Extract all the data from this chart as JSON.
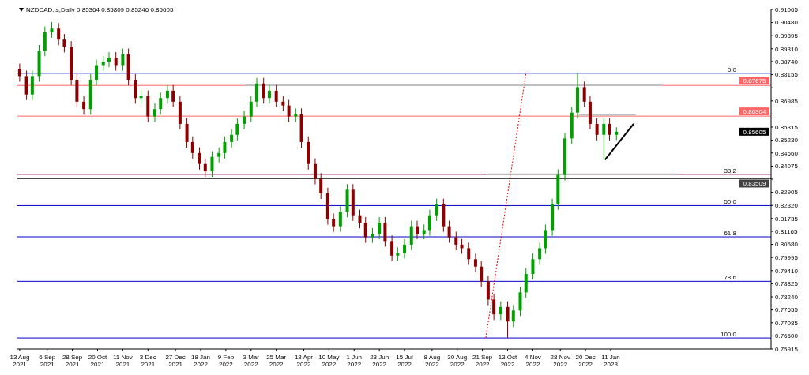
{
  "chart_data": {
    "type": "candlestick",
    "title": "NZDCAD.ts,Daily 0.85364 0.85809 0.85246 0.85605",
    "x": [
      "2021-08-13",
      "2021-08-19",
      "2021-08-24",
      "2021-08-30",
      "2021-09-04",
      "2021-09-10",
      "2021-09-16",
      "2021-09-21",
      "2021-09-27",
      "2021-10-02",
      "2021-10-08",
      "2021-10-14",
      "2021-10-19",
      "2021-10-25",
      "2021-10-30",
      "2021-11-05",
      "2021-11-11",
      "2021-11-16",
      "2021-11-22",
      "2021-11-27",
      "2021-12-03",
      "2021-12-09",
      "2021-12-14",
      "2021-12-20",
      "2021-12-25",
      "2021-12-31",
      "2022-01-06",
      "2022-01-11",
      "2022-01-17",
      "2022-01-22",
      "2022-01-28",
      "2022-02-03",
      "2022-02-08",
      "2022-02-14",
      "2022-02-19",
      "2022-02-25",
      "2022-03-03",
      "2022-03-08",
      "2022-03-14",
      "2022-03-19",
      "2022-03-25",
      "2022-03-31",
      "2022-04-05",
      "2022-04-11",
      "2022-04-16",
      "2022-04-22",
      "2022-04-28",
      "2022-05-03",
      "2022-05-09",
      "2022-05-14",
      "2022-05-20",
      "2022-05-26",
      "2022-05-31",
      "2022-06-06",
      "2022-06-11",
      "2022-06-17",
      "2022-06-23",
      "2022-06-28",
      "2022-07-04",
      "2022-07-09",
      "2022-07-15",
      "2022-07-21",
      "2022-07-26",
      "2022-08-01",
      "2022-08-06",
      "2022-08-12",
      "2022-08-18",
      "2022-08-23",
      "2022-08-29",
      "2022-09-03",
      "2022-09-09",
      "2022-09-15",
      "2022-09-20",
      "2022-09-26",
      "2022-10-01",
      "2022-10-07",
      "2022-10-13",
      "2022-10-18",
      "2022-10-24",
      "2022-10-29",
      "2022-11-04",
      "2022-11-10",
      "2022-11-15",
      "2022-11-21",
      "2022-11-26",
      "2022-12-02",
      "2022-12-08",
      "2022-12-13",
      "2022-12-19",
      "2022-12-24",
      "2022-12-30",
      "2023-01-05",
      "2023-01-10",
      "2023-01-16"
    ],
    "ohlc": [
      [
        0.884,
        0.8865,
        0.8784,
        0.8809
      ],
      [
        0.8809,
        0.8834,
        0.8702,
        0.8727
      ],
      [
        0.8727,
        0.8834,
        0.8702,
        0.8809
      ],
      [
        0.8809,
        0.8948,
        0.8784,
        0.8923
      ],
      [
        0.8923,
        0.903,
        0.8898,
        0.9005
      ],
      [
        0.9005,
        0.905,
        0.898,
        0.9021
      ],
      [
        0.9021,
        0.9046,
        0.8947,
        0.8972
      ],
      [
        0.8972,
        0.8997,
        0.8915,
        0.894
      ],
      [
        0.894,
        0.8965,
        0.8768,
        0.8793
      ],
      [
        0.8793,
        0.8818,
        0.867,
        0.8695
      ],
      [
        0.8695,
        0.872,
        0.8637,
        0.8662
      ],
      [
        0.8662,
        0.8818,
        0.8637,
        0.8793
      ],
      [
        0.8793,
        0.8883,
        0.8768,
        0.8858
      ],
      [
        0.8858,
        0.8899,
        0.8833,
        0.8874
      ],
      [
        0.8874,
        0.8916,
        0.8849,
        0.8891
      ],
      [
        0.8891,
        0.8916,
        0.8833,
        0.8858
      ],
      [
        0.8858,
        0.8932,
        0.8833,
        0.8907
      ],
      [
        0.8907,
        0.8932,
        0.8768,
        0.8793
      ],
      [
        0.8793,
        0.8818,
        0.8686,
        0.8711
      ],
      [
        0.8711,
        0.8745,
        0.8686,
        0.872
      ],
      [
        0.872,
        0.8745,
        0.8604,
        0.8629
      ],
      [
        0.8629,
        0.8687,
        0.8604,
        0.8662
      ],
      [
        0.8662,
        0.8736,
        0.8637,
        0.8711
      ],
      [
        0.8711,
        0.8769,
        0.8686,
        0.8744
      ],
      [
        0.8744,
        0.8769,
        0.867,
        0.8695
      ],
      [
        0.8695,
        0.872,
        0.8571,
        0.8596
      ],
      [
        0.8596,
        0.8621,
        0.849,
        0.8515
      ],
      [
        0.8515,
        0.854,
        0.8441,
        0.8466
      ],
      [
        0.8466,
        0.8491,
        0.8392,
        0.8417
      ],
      [
        0.8417,
        0.8442,
        0.8359,
        0.8384
      ],
      [
        0.8384,
        0.8474,
        0.8359,
        0.8449
      ],
      [
        0.8449,
        0.8491,
        0.8424,
        0.8466
      ],
      [
        0.8466,
        0.854,
        0.8441,
        0.8515
      ],
      [
        0.8515,
        0.8572,
        0.849,
        0.8547
      ],
      [
        0.8547,
        0.8621,
        0.8522,
        0.8596
      ],
      [
        0.8596,
        0.8654,
        0.8571,
        0.8629
      ],
      [
        0.8629,
        0.872,
        0.8604,
        0.8695
      ],
      [
        0.8695,
        0.8801,
        0.867,
        0.8776
      ],
      [
        0.8776,
        0.8801,
        0.8686,
        0.8711
      ],
      [
        0.8711,
        0.8769,
        0.8686,
        0.8744
      ],
      [
        0.8744,
        0.8769,
        0.867,
        0.8695
      ],
      [
        0.8695,
        0.872,
        0.8653,
        0.8678
      ],
      [
        0.8678,
        0.8703,
        0.8604,
        0.8629
      ],
      [
        0.8629,
        0.8665,
        0.8604,
        0.864
      ],
      [
        0.864,
        0.8665,
        0.849,
        0.8515
      ],
      [
        0.8515,
        0.854,
        0.8392,
        0.8417
      ],
      [
        0.8417,
        0.8442,
        0.8326,
        0.8351
      ],
      [
        0.8351,
        0.8376,
        0.8261,
        0.8286
      ],
      [
        0.8286,
        0.8311,
        0.8146,
        0.8171
      ],
      [
        0.8171,
        0.8196,
        0.8114,
        0.8139
      ],
      [
        0.8139,
        0.8229,
        0.8114,
        0.8204
      ],
      [
        0.8204,
        0.8327,
        0.8179,
        0.8302
      ],
      [
        0.8302,
        0.8327,
        0.8163,
        0.8188
      ],
      [
        0.8188,
        0.8213,
        0.813,
        0.8155
      ],
      [
        0.8155,
        0.818,
        0.8065,
        0.809
      ],
      [
        0.809,
        0.8131,
        0.8065,
        0.8106
      ],
      [
        0.8106,
        0.818,
        0.8081,
        0.8155
      ],
      [
        0.8155,
        0.818,
        0.8048,
        0.8073
      ],
      [
        0.8073,
        0.8098,
        0.7983,
        0.8008
      ],
      [
        0.8008,
        0.8045,
        0.7983,
        0.802
      ],
      [
        0.802,
        0.8082,
        0.7995,
        0.8057
      ],
      [
        0.8057,
        0.8164,
        0.8032,
        0.8139
      ],
      [
        0.8139,
        0.8164,
        0.8081,
        0.8106
      ],
      [
        0.8106,
        0.8147,
        0.8081,
        0.8122
      ],
      [
        0.8122,
        0.8213,
        0.8097,
        0.8188
      ],
      [
        0.8188,
        0.8262,
        0.8163,
        0.8237
      ],
      [
        0.8237,
        0.8262,
        0.8114,
        0.8139
      ],
      [
        0.8139,
        0.8164,
        0.8065,
        0.809
      ],
      [
        0.809,
        0.8115,
        0.8032,
        0.8057
      ],
      [
        0.8057,
        0.8082,
        0.8016,
        0.8041
      ],
      [
        0.8041,
        0.8066,
        0.7967,
        0.7992
      ],
      [
        0.7992,
        0.8017,
        0.7934,
        0.7959
      ],
      [
        0.7959,
        0.7984,
        0.7868,
        0.7893
      ],
      [
        0.7893,
        0.7918,
        0.7787,
        0.7812
      ],
      [
        0.7812,
        0.7837,
        0.7721,
        0.7746
      ],
      [
        0.7746,
        0.7804,
        0.7721,
        0.7779
      ],
      [
        0.7779,
        0.7804,
        0.7641,
        0.7714
      ],
      [
        0.7714,
        0.7788,
        0.7689,
        0.7763
      ],
      [
        0.7763,
        0.7869,
        0.7738,
        0.7844
      ],
      [
        0.7844,
        0.7951,
        0.7819,
        0.7926
      ],
      [
        0.7926,
        0.8017,
        0.7901,
        0.7992
      ],
      [
        0.7992,
        0.8066,
        0.7967,
        0.8041
      ],
      [
        0.8041,
        0.8147,
        0.8016,
        0.8122
      ],
      [
        0.8122,
        0.8262,
        0.8097,
        0.8237
      ],
      [
        0.8237,
        0.8393,
        0.8212,
        0.8368
      ],
      [
        0.8368,
        0.8556,
        0.8343,
        0.8531
      ],
      [
        0.8531,
        0.8671,
        0.8506,
        0.8646
      ],
      [
        0.8646,
        0.8822,
        0.8621,
        0.876
      ],
      [
        0.876,
        0.8785,
        0.867,
        0.8695
      ],
      [
        0.8695,
        0.872,
        0.8571,
        0.8596
      ],
      [
        0.8596,
        0.8621,
        0.8522,
        0.8547
      ],
      [
        0.8547,
        0.8621,
        0.8436,
        0.8596
      ],
      [
        0.8596,
        0.8621,
        0.8522,
        0.8547
      ],
      [
        0.8547,
        0.8581,
        0.8524,
        0.8561
      ]
    ],
    "colors": [
      "#8b0000",
      "#8b0000",
      "#00a000",
      "#00a000",
      "#00a000",
      "#00a000",
      "#8b0000",
      "#8b0000",
      "#8b0000",
      "#8b0000",
      "#8b0000",
      "#00a000",
      "#00a000",
      "#00a000",
      "#00a000",
      "#8b0000",
      "#00a000",
      "#8b0000",
      "#8b0000",
      "#00a000",
      "#8b0000",
      "#00a000",
      "#00a000",
      "#00a000",
      "#8b0000",
      "#8b0000",
      "#8b0000",
      "#8b0000",
      "#8b0000",
      "#8b0000",
      "#00a000",
      "#00a000",
      "#00a000",
      "#00a000",
      "#00a000",
      "#00a000",
      "#00a000",
      "#00a000",
      "#8b0000",
      "#00a000",
      "#8b0000",
      "#8b0000",
      "#8b0000",
      "#00a000",
      "#8b0000",
      "#8b0000",
      "#8b0000",
      "#8b0000",
      "#8b0000",
      "#8b0000",
      "#00a000",
      "#00a000",
      "#8b0000",
      "#8b0000",
      "#8b0000",
      "#00a000",
      "#00a000",
      "#8b0000",
      "#8b0000",
      "#00a000",
      "#00a000",
      "#00a000",
      "#8b0000",
      "#00a000",
      "#00a000",
      "#00a000",
      "#8b0000",
      "#8b0000",
      "#8b0000",
      "#8b0000",
      "#8b0000",
      "#8b0000",
      "#8b0000",
      "#8b0000",
      "#8b0000",
      "#00a000",
      "#8b0000",
      "#00a000",
      "#00a000",
      "#00a000",
      "#00a000",
      "#00a000",
      "#00a000",
      "#00a000",
      "#00a000",
      "#00a000",
      "#00a000",
      "#00a000",
      "#8b0000",
      "#8b0000",
      "#8b0000",
      "#00a000",
      "#8b0000",
      "#00a000"
    ],
    "series": [
      {
        "type": "line",
        "x": [
          "2023-01-06",
          "2023-01-31"
        ],
        "values": [
          0.8436,
          0.8596
        ],
        "color": "#000000"
      },
      {
        "type": "line",
        "x": [
          "2022-09-24",
          "2022-10-29"
        ],
        "values": [
          0.7641,
          0.8822
        ],
        "color": "#ff0000",
        "line_style": "dotted"
      },
      {
        "type": "line",
        "x": [
          "2022-02-26",
          "2023-02-25"
        ],
        "values": [
          0.8768,
          0.8768
        ],
        "color": "#c0c0c0"
      },
      {
        "type": "line",
        "x": [
          "2022-12-14",
          "2023-02-02"
        ],
        "values": [
          0.8636,
          0.8636
        ],
        "color": "#c0c0c0"
      },
      {
        "type": "line",
        "x": [
          "2022-09-24",
          "2023-03-11"
        ],
        "values": [
          0.8371,
          0.8371
        ],
        "color": "#c0c0c0"
      }
    ],
    "ref_lines": [
      {
        "axis": "y",
        "value": 0.88218,
        "color": "#0000cc"
      },
      {
        "axis": "y",
        "value": 0.87675,
        "label": "0.87675",
        "color": "#ff6666"
      },
      {
        "axis": "y",
        "value": 0.86304,
        "label": "0.86304",
        "color": "#ff6666"
      },
      {
        "axis": "y",
        "value": 0.83706,
        "color": "#800040"
      },
      {
        "axis": "y",
        "value": 0.83509,
        "label": "0.83509",
        "color": "#404040"
      },
      {
        "axis": "y",
        "value": 0.82312,
        "color": "#0000cc"
      },
      {
        "axis": "y",
        "value": 0.80917,
        "color": "#0000cc"
      },
      {
        "axis": "y",
        "value": 0.78933,
        "color": "#0000cc"
      },
      {
        "axis": "y",
        "value": 0.76405,
        "color": "#0000cc"
      }
    ],
    "annotations": [
      {
        "text": "0.0",
        "y": 0.88218
      },
      {
        "text": "38.2",
        "y": 0.83706
      },
      {
        "text": "50.0",
        "y": 0.82312
      },
      {
        "text": "61.8",
        "y": 0.80917
      },
      {
        "text": "78.6",
        "y": 0.78933
      },
      {
        "text": "100.0",
        "y": 0.76405
      },
      "0.85605"
    ],
    "xlim": [
      "2021-08-11",
      "2023-05-31"
    ],
    "xticks": [
      {
        "value": "2021-08-13",
        "label": "13 Aug 2021"
      },
      {
        "value": "2021-09-06",
        "label": "6 Sep 2021"
      },
      {
        "value": "2021-09-28",
        "label": "28 Sep 2021"
      },
      {
        "value": "2021-10-20",
        "label": "20 Oct 2021"
      },
      {
        "value": "2021-11-11",
        "label": "11 Nov 2021"
      },
      {
        "value": "2021-12-03",
        "label": "3 Dec 2021"
      },
      {
        "value": "2021-12-27",
        "label": "27 Dec 2021"
      },
      {
        "value": "2022-01-18",
        "label": "18 Jan 2022"
      },
      {
        "value": "2022-02-09",
        "label": "9 Feb 2022"
      },
      {
        "value": "2022-03-03",
        "label": "3 Mar 2022"
      },
      {
        "value": "2022-03-25",
        "label": "25 Mar 2022"
      },
      {
        "value": "2022-04-18",
        "label": "18 Apr 2022"
      },
      {
        "value": "2022-05-10",
        "label": "10 May 2022"
      },
      {
        "value": "2022-06-01",
        "label": "1 Jun 2022"
      },
      {
        "value": "2022-06-23",
        "label": "23 Jun 2022"
      },
      {
        "value": "2022-07-15",
        "label": "15 Jul 2022"
      },
      {
        "value": "2022-08-08",
        "label": "8 Aug 2022"
      },
      {
        "value": "2022-08-30",
        "label": "30 Aug 2022"
      },
      {
        "value": "2022-09-21",
        "label": "21 Sep 2022"
      },
      {
        "value": "2022-10-13",
        "label": "13 Oct 2022"
      },
      {
        "value": "2022-11-04",
        "label": "4 Nov 2022"
      },
      {
        "value": "2022-11-28",
        "label": "28 Nov 2022"
      },
      {
        "value": "2022-12-20",
        "label": "20 Dec 2022"
      },
      {
        "value": "2023-01-11",
        "label": "11 Jan 2023"
      }
    ],
    "ylim": [
      0.75915,
      0.91065
    ],
    "yticks": [
      0.91065,
      {
        "value": 0.9048,
        "label": "0.90480"
      },
      {
        "value": 0.89895,
        "label": "0.89895"
      },
      {
        "value": 0.8931,
        "label": "0.89310"
      },
      {
        "value": 0.8874,
        "label": "0.88740"
      },
      0.88155,
      {
        "value": 0.8757,
        "label": null
      },
      0.86985,
      {
        "value": 0.864,
        "label": null
      },
      0.85815,
      {
        "value": 0.8523,
        "label": "0.85230"
      },
      {
        "value": 0.8466,
        "label": "0.84660"
      },
      0.84075,
      {
        "value": 0.8349,
        "label": null
      },
      0.82905,
      {
        "value": 0.8232,
        "label": "0.82320"
      },
      0.81735,
      0.81165,
      {
        "value": 0.8058,
        "label": "0.80580"
      },
      0.79995,
      {
        "value": 0.7941,
        "label": "0.79410"
      },
      0.78825,
      {
        "value": 0.7824,
        "label": "0.78240"
      },
      0.77655,
      0.77085,
      {
        "value": 0.765,
        "label": "0.76500"
      },
      0.75915
    ]
  }
}
